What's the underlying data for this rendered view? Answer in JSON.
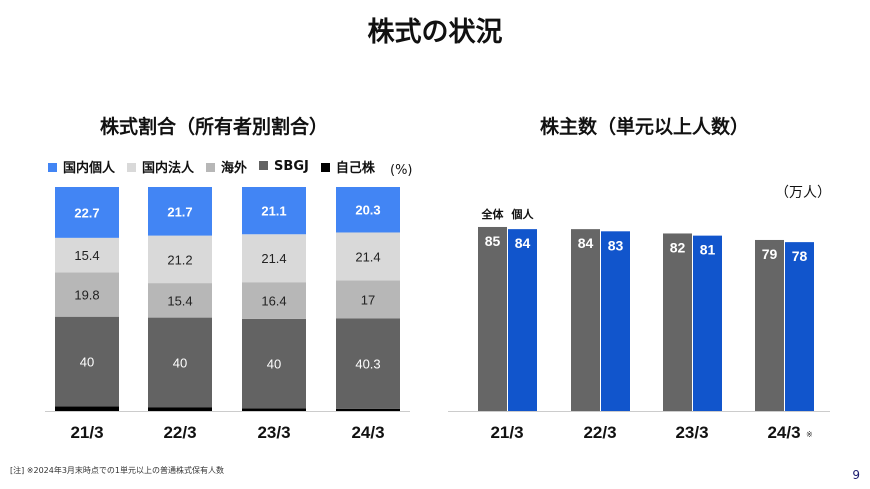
{
  "title": "株式の状況",
  "page_number": "9",
  "note": "[注] ※2024年3月末時点での1単元以上の普通株式保有人数",
  "chart_data": [
    {
      "type": "bar",
      "stacked": true,
      "title": "株式割合（所有者別割合）",
      "unit": "(%)",
      "legend_position": "top",
      "categories": [
        "21/3",
        "22/3",
        "23/3",
        "24/3"
      ],
      "series": [
        {
          "name": "自己株",
          "color": "#000000",
          "values": [
            2.1,
            1.7,
            1.1,
            1.0
          ],
          "labeled": false
        },
        {
          "name": "SBGJ",
          "color": "#636363",
          "values": [
            40,
            40,
            40,
            40.3
          ],
          "label_color": "#ffffff"
        },
        {
          "name": "海外",
          "color": "#b7b7b7",
          "values": [
            19.8,
            15.4,
            16.4,
            17
          ],
          "label_color": "#222222"
        },
        {
          "name": "国内法人",
          "color": "#d9d9d9",
          "values": [
            15.4,
            21.2,
            21.4,
            21.4
          ],
          "label_color": "#222222"
        },
        {
          "name": "国内個人",
          "color": "#4285f4",
          "values": [
            22.7,
            21.7,
            21.1,
            20.3
          ],
          "label_color": "#ffffff"
        }
      ],
      "legend_order": [
        "国内個人",
        "国内法人",
        "海外",
        "SBGJ",
        "自己株"
      ],
      "ylim": [
        0,
        100
      ]
    },
    {
      "type": "bar",
      "title": "株主数（単元以上人数）",
      "unit": "（万人）",
      "categories": [
        "21/3",
        "22/3",
        "23/3",
        "24/3"
      ],
      "category_suffix": [
        "",
        "",
        "",
        "※"
      ],
      "series": [
        {
          "name": "全体",
          "color": "#666666",
          "values": [
            85,
            84,
            82,
            79
          ]
        },
        {
          "name": "個人",
          "color": "#1155cc",
          "values": [
            84,
            83,
            81,
            78
          ]
        }
      ],
      "ylim": [
        0,
        85
      ]
    }
  ]
}
